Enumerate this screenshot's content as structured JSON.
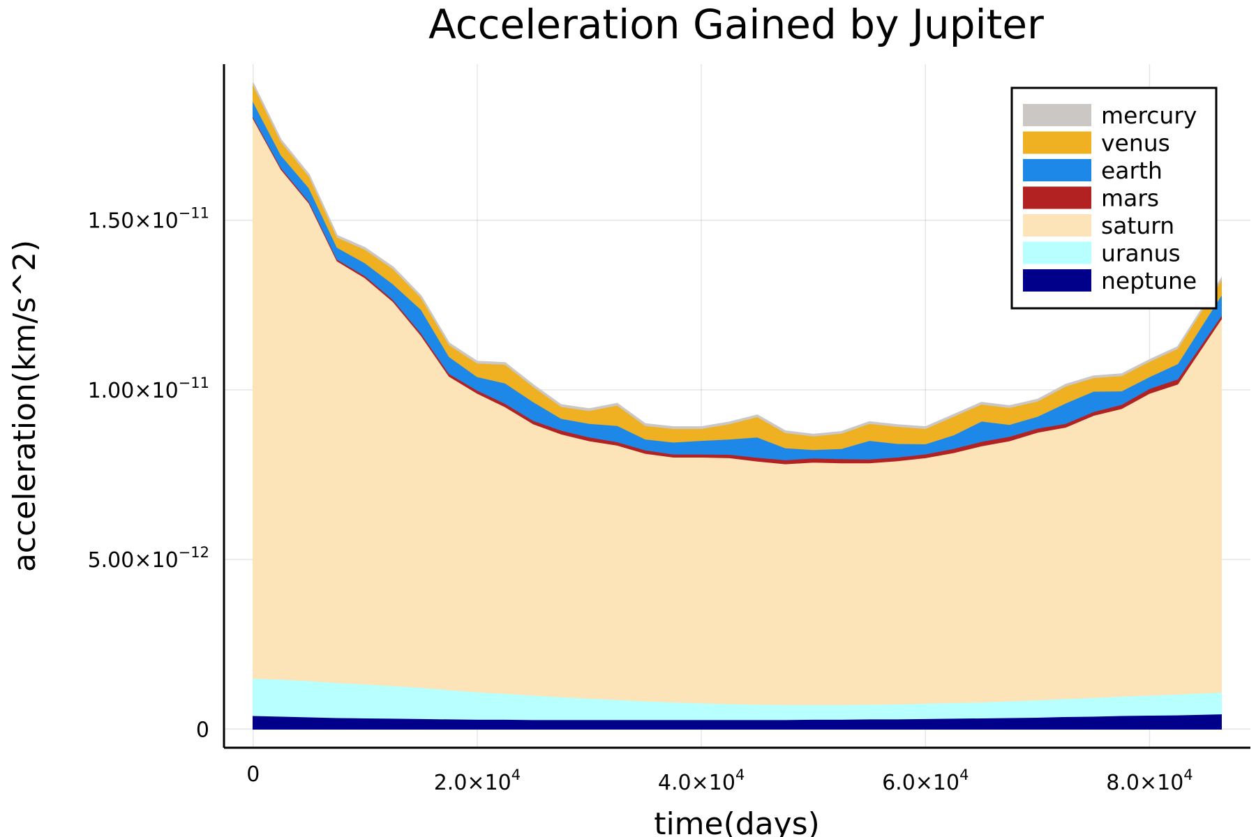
{
  "chart_data": {
    "type": "area",
    "stacked": true,
    "title": "Acceleration Gained by Jupiter",
    "xlabel": "time(days)",
    "ylabel": "acceleration(km/s^2)",
    "xlim": [
      -2600,
      89000
    ],
    "ylim": [
      -5.5e-13,
      1.96e-11
    ],
    "x_ticks": [
      {
        "value": 0,
        "mantissa": "0",
        "exp": ""
      },
      {
        "value": 20000,
        "mantissa": "2.0×10",
        "exp": "4"
      },
      {
        "value": 40000,
        "mantissa": "4.0×10",
        "exp": "4"
      },
      {
        "value": 60000,
        "mantissa": "6.0×10",
        "exp": "4"
      },
      {
        "value": 80000,
        "mantissa": "8.0×10",
        "exp": "4"
      }
    ],
    "y_ticks": [
      {
        "value": 0,
        "mantissa": "0",
        "exp": ""
      },
      {
        "value": 5e-12,
        "mantissa": "5.00×10",
        "exp": "−12"
      },
      {
        "value": 1e-11,
        "mantissa": "1.00×10",
        "exp": "−11"
      },
      {
        "value": 1.5e-11,
        "mantissa": "1.50×10",
        "exp": "−11"
      }
    ],
    "grid": true,
    "legend_position": "top-right",
    "x": [
      0,
      2500,
      5000,
      7500,
      10000,
      12500,
      15000,
      17500,
      20000,
      22500,
      25000,
      27500,
      30000,
      32500,
      35000,
      37500,
      40000,
      42500,
      45000,
      47500,
      50000,
      52500,
      55000,
      57500,
      60000,
      62500,
      65000,
      67500,
      70000,
      72500,
      75000,
      77500,
      80000,
      82500,
      86400
    ],
    "series": [
      {
        "name": "neptune",
        "color": "#00008b",
        "values": [
          4e-13,
          3.8e-13,
          3.6e-13,
          3.4e-13,
          3.3e-13,
          3.2e-13,
          3.1e-13,
          3e-13,
          2.9e-13,
          2.9e-13,
          2.8e-13,
          2.8e-13,
          2.8e-13,
          2.8e-13,
          2.8e-13,
          2.8e-13,
          2.8e-13,
          2.8e-13,
          2.8e-13,
          2.8e-13,
          2.9e-13,
          2.9e-13,
          3e-13,
          3e-13,
          3.1e-13,
          3.2e-13,
          3.3e-13,
          3.4e-13,
          3.5e-13,
          3.7e-13,
          3.8e-13,
          4e-13,
          4.1e-13,
          4.2e-13,
          4.5e-13
        ]
      },
      {
        "name": "uranus",
        "color": "#b8ffff",
        "values": [
          1.1e-12,
          1.09e-12,
          1.07e-12,
          1.03e-12,
          1e-12,
          9.6e-13,
          9.2e-13,
          8.6e-13,
          8.1e-13,
          7.6e-13,
          7.2e-13,
          6.7e-13,
          6.3e-13,
          5.9e-13,
          5.5e-13,
          5.2e-13,
          4.9e-13,
          4.7e-13,
          4.5e-13,
          4.4e-13,
          4.3e-13,
          4.3e-13,
          4.3e-13,
          4.4e-13,
          4.5e-13,
          4.6e-13,
          4.7e-13,
          4.9e-13,
          5.1e-13,
          5.3e-13,
          5.5e-13,
          5.7e-13,
          5.9e-13,
          6.1e-13,
          6.4e-13
        ]
      },
      {
        "name": "saturn",
        "color": "#fde4b8",
        "values": [
          1.65e-11,
          1.503e-11,
          1.407e-11,
          1.243e-11,
          1.197e-11,
          1.132e-11,
          1.037e-11,
          9.24e-12,
          8.8e-12,
          8.45e-12,
          8e-12,
          7.75e-12,
          7.59e-12,
          7.5e-12,
          7.3e-12,
          7.22e-12,
          7.25e-12,
          7.25e-12,
          7.17e-12,
          7.1e-12,
          7.15e-12,
          7.13e-12,
          7.12e-12,
          7.17e-12,
          7.24e-12,
          7.37e-12,
          7.55e-12,
          7.67e-12,
          7.89e-12,
          8e-12,
          8.32e-12,
          8.48e-12,
          8.9e-12,
          9.14e-12,
          1.1e-11
        ]
      },
      {
        "name": "mars",
        "color": "#b22222",
        "values": [
          5e-14,
          5e-14,
          5e-14,
          5e-14,
          6e-14,
          6e-14,
          7e-14,
          8e-14,
          9e-14,
          1e-13,
          1e-13,
          1.1e-13,
          1.1e-13,
          1e-13,
          1e-13,
          9e-14,
          9e-14,
          1e-13,
          1.1e-13,
          1.2e-13,
          1.2e-13,
          1.2e-13,
          1.1e-13,
          1.1e-13,
          1.1e-13,
          1.2e-13,
          1.3e-13,
          1.3e-13,
          1.2e-13,
          1.1e-13,
          1.1e-13,
          1.2e-13,
          1.4e-13,
          1.5e-13,
          1e-13
        ]
      },
      {
        "name": "earth",
        "color": "#1e88e8",
        "values": [
          4.5e-13,
          3.7e-13,
          4e-13,
          3.5e-13,
          3.8e-13,
          4.6e-13,
          7e-13,
          5e-13,
          4e-13,
          6e-13,
          5.5e-13,
          3.5e-13,
          4e-13,
          4.8e-13,
          3.2e-13,
          3.5e-13,
          4e-13,
          4.5e-13,
          6e-13,
          3.5e-13,
          2.5e-13,
          3e-13,
          5.5e-13,
          4e-13,
          3e-13,
          4e-13,
          6e-13,
          3.5e-13,
          3.5e-13,
          6e-13,
          6e-13,
          4e-13,
          3.5e-13,
          4.5e-13,
          6e-13
        ]
      },
      {
        "name": "venus",
        "color": "#efb022",
        "values": [
          5e-13,
          4e-13,
          3.5e-13,
          3e-13,
          4e-13,
          4.5e-13,
          3.5e-13,
          3.5e-13,
          4e-13,
          5.5e-13,
          4.5e-13,
          3.5e-13,
          3.8e-13,
          6e-13,
          4e-13,
          4e-13,
          3.5e-13,
          4.5e-13,
          6e-13,
          4.5e-13,
          4e-13,
          4.5e-13,
          5e-13,
          5e-13,
          4.5e-13,
          5.5e-13,
          5e-13,
          5e-13,
          4.5e-13,
          5e-13,
          4e-13,
          4.5e-13,
          4.5e-13,
          4.5e-13,
          4.5e-13
        ]
      },
      {
        "name": "mercury",
        "color": "#cac7c5",
        "values": [
          5e-14,
          5e-14,
          5e-14,
          5e-14,
          5e-14,
          5e-14,
          5e-14,
          5e-14,
          5e-14,
          5e-14,
          5e-14,
          5e-14,
          5e-14,
          5e-14,
          5e-14,
          5e-14,
          5e-14,
          5e-14,
          5e-14,
          5e-14,
          5e-14,
          5e-14,
          5e-14,
          5e-14,
          5e-14,
          5e-14,
          5e-14,
          5e-14,
          5e-14,
          5e-14,
          5e-14,
          5e-14,
          5e-14,
          5e-14,
          5e-14
        ]
      }
    ],
    "legend": [
      {
        "name": "mercury",
        "color": "#cac7c5"
      },
      {
        "name": "venus",
        "color": "#efb022"
      },
      {
        "name": "earth",
        "color": "#1e88e8"
      },
      {
        "name": "mars",
        "color": "#b22222"
      },
      {
        "name": "saturn",
        "color": "#fde4b8"
      },
      {
        "name": "uranus",
        "color": "#b8ffff"
      },
      {
        "name": "neptune",
        "color": "#00008b"
      }
    ]
  }
}
